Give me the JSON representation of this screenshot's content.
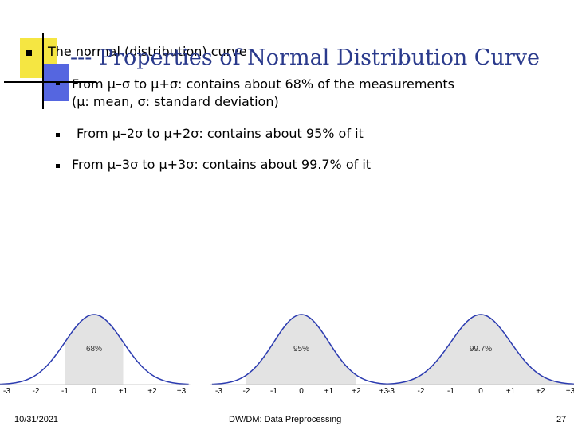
{
  "slide": {
    "title": "--- Properties of Normal Distribution Curve",
    "bullet_main": "The normal (distribution) curve",
    "sub_bullets": [
      "From μ–σ to μ+σ: contains about 68% of the measurements",
      "(μ: mean, σ: standard deviation)",
      "From μ–2σ to μ+2σ: contains about 95% of it",
      "From μ–3σ to μ+3σ: contains about 99.7% of it"
    ]
  },
  "chart_data": [
    {
      "type": "area",
      "distribution": "normal",
      "shaded_range": [
        -1,
        1
      ],
      "annotation": "68%",
      "x_ticks": [
        "-3",
        "-2",
        "-1",
        "0",
        "+1",
        "+2",
        "+3"
      ]
    },
    {
      "type": "area",
      "distribution": "normal",
      "shaded_range": [
        -2,
        2
      ],
      "annotation": "95%",
      "x_ticks": [
        "-3",
        "-2",
        "-1",
        "0",
        "+1",
        "+2",
        "+3"
      ]
    },
    {
      "type": "area",
      "distribution": "normal",
      "shaded_range": [
        -3,
        3
      ],
      "annotation": "99.7%",
      "x_ticks": [
        "-3",
        "-2",
        "-1",
        "0",
        "+1",
        "+2",
        "+3"
      ]
    }
  ],
  "footer": {
    "date": "10/31/2021",
    "course": "DW/DM: Data Preprocessing",
    "page": "27"
  },
  "colors": {
    "title": "#2a3a8c",
    "curve": "#2b3bb0",
    "shade": "#e3e3e3",
    "accent_yellow": "#f5e642",
    "accent_blue": "#5566e0"
  }
}
